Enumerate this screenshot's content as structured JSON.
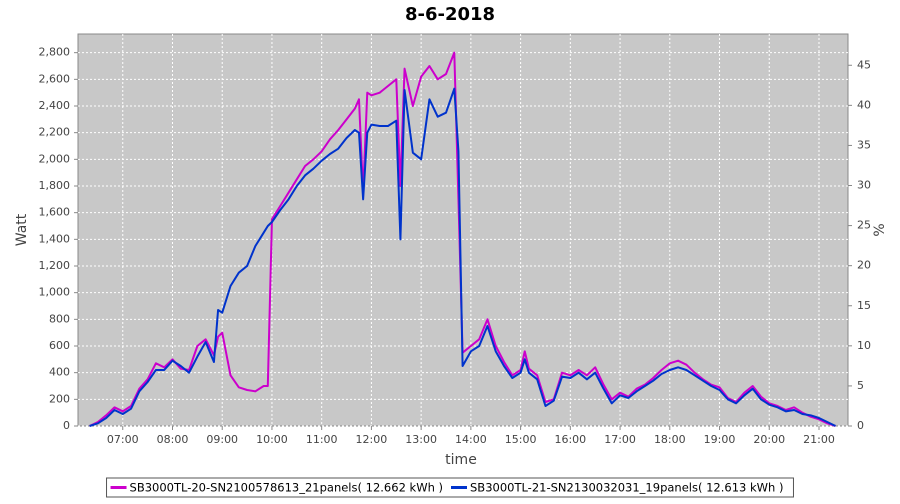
{
  "chart_data": {
    "type": "line",
    "title": "8-6-2018",
    "x_label": "time",
    "y_label": "Watt",
    "y2_label": "%",
    "x": [
      "06:20",
      "06:30",
      "06:40",
      "06:50",
      "07:00",
      "07:10",
      "07:20",
      "07:30",
      "07:40",
      "07:50",
      "08:00",
      "08:10",
      "08:20",
      "08:30",
      "08:40",
      "08:50",
      "08:55",
      "09:00",
      "09:10",
      "09:20",
      "09:30",
      "09:40",
      "09:50",
      "09:55",
      "10:00",
      "10:10",
      "10:20",
      "10:30",
      "10:40",
      "10:50",
      "11:00",
      "11:10",
      "11:20",
      "11:30",
      "11:40",
      "11:45",
      "11:50",
      "11:55",
      "12:00",
      "12:10",
      "12:20",
      "12:30",
      "12:35",
      "12:40",
      "12:50",
      "13:00",
      "13:10",
      "13:20",
      "13:30",
      "13:40",
      "13:45",
      "13:50",
      "14:00",
      "14:10",
      "14:20",
      "14:30",
      "14:40",
      "14:50",
      "15:00",
      "15:05",
      "15:10",
      "15:20",
      "15:30",
      "15:40",
      "15:50",
      "16:00",
      "16:10",
      "16:20",
      "16:30",
      "16:40",
      "16:50",
      "17:00",
      "17:10",
      "17:20",
      "17:30",
      "17:40",
      "17:50",
      "18:00",
      "18:10",
      "18:20",
      "18:30",
      "18:40",
      "18:50",
      "19:00",
      "19:10",
      "19:20",
      "19:30",
      "19:40",
      "19:50",
      "20:00",
      "20:10",
      "20:20",
      "20:30",
      "20:40",
      "20:50",
      "21:00",
      "21:10",
      "21:20"
    ],
    "series": [
      {
        "name": "SB3000TL-20-SN2100578613_21panels( 12.662 kWh )",
        "color": "#cc00cc",
        "values": [
          0,
          30,
          80,
          140,
          110,
          150,
          280,
          350,
          470,
          440,
          500,
          430,
          420,
          600,
          650,
          530,
          670,
          700,
          380,
          290,
          270,
          260,
          300,
          300,
          1550,
          1650,
          1750,
          1850,
          1950,
          2000,
          2060,
          2150,
          2220,
          2300,
          2380,
          2450,
          1750,
          2500,
          2480,
          2500,
          2550,
          2600,
          1800,
          2680,
          2400,
          2620,
          2700,
          2600,
          2640,
          2800,
          1700,
          550,
          600,
          650,
          800,
          600,
          480,
          380,
          420,
          560,
          430,
          380,
          180,
          200,
          400,
          380,
          420,
          380,
          440,
          310,
          200,
          250,
          220,
          280,
          310,
          360,
          420,
          470,
          490,
          460,
          400,
          350,
          310,
          290,
          210,
          180,
          250,
          300,
          220,
          170,
          150,
          120,
          140,
          100,
          70,
          50,
          20,
          0
        ]
      },
      {
        "name": "SB3000TL-21-SN2130032031_19panels( 12.613 kWh )",
        "color": "#0033cc",
        "values": [
          0,
          20,
          60,
          120,
          90,
          130,
          260,
          330,
          420,
          420,
          490,
          450,
          400,
          520,
          630,
          480,
          870,
          850,
          1050,
          1150,
          1200,
          1350,
          1450,
          1500,
          1530,
          1620,
          1700,
          1800,
          1880,
          1930,
          1990,
          2040,
          2080,
          2160,
          2220,
          2200,
          1700,
          2200,
          2260,
          2250,
          2250,
          2290,
          1400,
          2520,
          2050,
          2000,
          2450,
          2320,
          2350,
          2530,
          2060,
          450,
          560,
          600,
          750,
          560,
          450,
          360,
          400,
          500,
          400,
          350,
          150,
          190,
          370,
          360,
          400,
          350,
          400,
          280,
          170,
          230,
          210,
          260,
          300,
          340,
          390,
          420,
          440,
          420,
          380,
          340,
          300,
          270,
          200,
          170,
          230,
          280,
          200,
          160,
          140,
          110,
          120,
          90,
          80,
          60,
          30,
          0
        ]
      }
    ],
    "xlim": [
      "06:06",
      "21:35"
    ],
    "xticks": [
      "07:00",
      "08:00",
      "09:00",
      "10:00",
      "11:00",
      "12:00",
      "13:00",
      "14:00",
      "15:00",
      "16:00",
      "17:00",
      "18:00",
      "19:00",
      "20:00",
      "21:00"
    ],
    "ylim": [
      0,
      2940
    ],
    "yticks": [
      0,
      200,
      400,
      600,
      800,
      {
        "value": 1000,
        "label": "1,000"
      },
      {
        "value": 1200,
        "label": "1,200"
      },
      {
        "value": 1400,
        "label": "1,400"
      },
      {
        "value": 1600,
        "label": "1,600"
      },
      {
        "value": 1800,
        "label": "1,800"
      },
      {
        "value": 2000,
        "label": "2,000"
      },
      {
        "value": 2200,
        "label": "2,200"
      },
      {
        "value": 2400,
        "label": "2,400"
      },
      {
        "value": 2600,
        "label": "2,600"
      },
      {
        "value": 2800,
        "label": "2,800"
      }
    ],
    "y2lim": [
      0,
      48.9
    ],
    "y2ticks": [
      0,
      5,
      10,
      15,
      20,
      25,
      30,
      35,
      40,
      45
    ],
    "grid": true,
    "plot_background": "#c8c8c8",
    "legend_position": "bottom"
  }
}
